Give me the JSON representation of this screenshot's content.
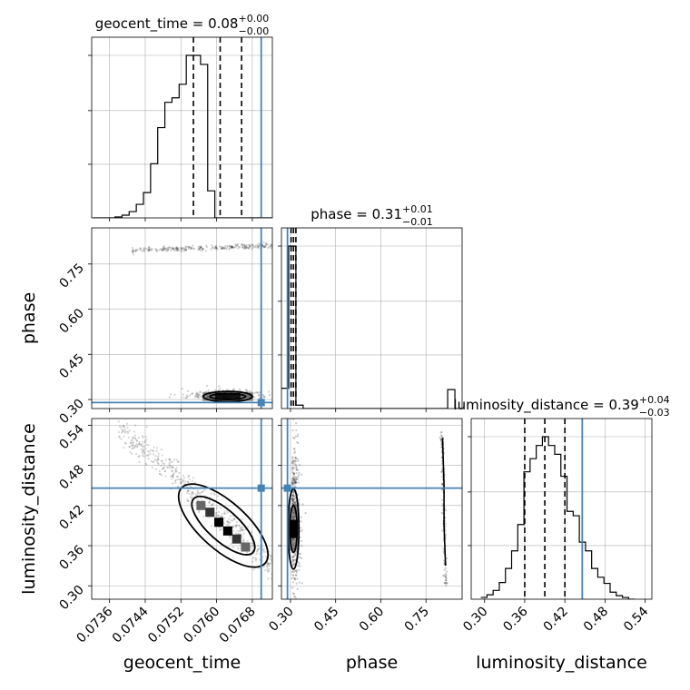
{
  "chart_data": {
    "type": "corner",
    "colors": {
      "truth": "#4682b4",
      "hist": "#000000",
      "grid": "#b0b0b0"
    },
    "parameters": [
      {
        "name": "geocent_time",
        "title_main": "geocent_time = 0.08",
        "title_sup": "+0.00",
        "title_sub": "−0.00",
        "range": [
          0.0732,
          0.07725
        ],
        "ticks": [
          0.0736,
          0.0744,
          0.0752,
          0.076,
          0.0768
        ],
        "tick_labels": [
          "0.0736",
          "0.0744",
          "0.0752",
          "0.0760",
          "0.0768"
        ],
        "truth": 0.077,
        "quantiles": [
          0.07548,
          0.07608,
          0.07656
        ],
        "hist_bin_edges": [
          0.07324,
          0.0734,
          0.07356,
          0.07372,
          0.07388,
          0.07404,
          0.0742,
          0.07436,
          0.07452,
          0.07468,
          0.07484,
          0.075,
          0.07516,
          0.07532,
          0.07548,
          0.07564,
          0.0758,
          0.07596,
          0.07612,
          0.07628,
          0.07644,
          0.0766,
          0.07676,
          0.07692,
          0.07708,
          0.07724
        ],
        "hist_counts": [
          0,
          0,
          0,
          1,
          3,
          7,
          15,
          28,
          60,
          100,
          128,
          133,
          148,
          180,
          180,
          170,
          30,
          0,
          0,
          0,
          0,
          0,
          0,
          0,
          0
        ]
      },
      {
        "name": "phase",
        "title_main": "phase = 0.31",
        "title_sup": "+0.01",
        "title_sub": "−0.01",
        "range": [
          0.27,
          0.87
        ],
        "ticks": [
          0.3,
          0.45,
          0.6,
          0.75
        ],
        "tick_labels": [
          "0.30",
          "0.45",
          "0.60",
          "0.75"
        ],
        "truth": 0.29,
        "quantiles": [
          0.302,
          0.31,
          0.318
        ],
        "hist_bin_edges": [
          0.27,
          0.294,
          0.318,
          0.342,
          0.366,
          0.39,
          0.414,
          0.438,
          0.462,
          0.486,
          0.51,
          0.534,
          0.558,
          0.582,
          0.606,
          0.63,
          0.654,
          0.678,
          0.702,
          0.726,
          0.75,
          0.774,
          0.798,
          0.822,
          0.846,
          0.87
        ],
        "hist_counts": [
          30,
          240,
          5,
          0,
          0,
          0,
          0,
          0,
          0,
          0,
          0,
          0,
          0,
          0,
          0,
          0,
          0,
          0,
          0,
          0,
          0,
          0,
          0,
          28,
          0
        ]
      },
      {
        "name": "luminosity_distance",
        "title_main": "luminosity_distance = 0.39",
        "title_sup": "+0.04",
        "title_sub": "−0.03",
        "range": [
          0.28,
          0.55
        ],
        "ticks": [
          0.3,
          0.36,
          0.42,
          0.48,
          0.54
        ],
        "tick_labels": [
          "0.30",
          "0.36",
          "0.42",
          "0.48",
          "0.54"
        ],
        "truth": 0.446,
        "quantiles": [
          0.36,
          0.39,
          0.42
        ],
        "hist_bin_edges": [
          0.2944,
          0.3036,
          0.3128,
          0.322,
          0.3312,
          0.3404,
          0.3496,
          0.3588,
          0.368,
          0.3772,
          0.3864,
          0.3956,
          0.4048,
          0.414,
          0.4232,
          0.4324,
          0.4416,
          0.4508,
          0.46,
          0.4692,
          0.4784,
          0.4876,
          0.4968,
          0.506,
          0.5152,
          0.5244
        ],
        "hist_counts": [
          2,
          5,
          10,
          19,
          35,
          55,
          85,
          145,
          160,
          175,
          185,
          175,
          165,
          140,
          100,
          95,
          65,
          55,
          35,
          25,
          18,
          8,
          4,
          2,
          0
        ]
      }
    ],
    "pair_panels": [
      {
        "x": "geocent_time",
        "y": "phase",
        "truth": [
          0.077,
          0.29
        ],
        "band_ridge": [
          [
            0.0741,
            0.795
          ],
          [
            0.0748,
            0.8
          ],
          [
            0.0756,
            0.804
          ],
          [
            0.0764,
            0.808
          ],
          [
            0.0772,
            0.812
          ]
        ],
        "cluster_center": [
          0.07625,
          0.31
        ],
        "contour_levels": [
          {
            "center": [
              0.07625,
              0.31
            ],
            "half_widths": [
              0.0004,
              0.01
            ]
          },
          {
            "center": [
              0.07625,
              0.31
            ],
            "half_widths": [
              0.00055,
              0.017
            ]
          }
        ]
      },
      {
        "x": "geocent_time",
        "y": "luminosity_distance",
        "truth": [
          0.077,
          0.446
        ],
        "trend": [
          [
            0.0738,
            0.53
          ],
          [
            0.0746,
            0.505
          ],
          [
            0.0754,
            0.465
          ],
          [
            0.076,
            0.41
          ],
          [
            0.0766,
            0.37
          ],
          [
            0.0772,
            0.335
          ]
        ],
        "contour_levels": [
          {
            "center": [
              0.07615,
              0.39
            ],
            "half_widths": [
              0.0006,
              0.035
            ],
            "angle_deg": 42
          },
          {
            "center": [
              0.07615,
              0.39
            ],
            "half_widths": [
              0.0009,
              0.053
            ],
            "angle_deg": 42
          }
        ]
      },
      {
        "x": "phase",
        "y": "luminosity_distance",
        "truth": [
          0.29,
          0.446
        ],
        "lobes": [
          {
            "center": [
              0.31,
              0.385
            ],
            "half_widths": [
              0.012,
              0.035
            ]
          },
          {
            "center": [
              0.31,
              0.385
            ],
            "half_widths": [
              0.018,
              0.06
            ]
          }
        ],
        "secondary_ridge": [
          [
            0.805,
            0.52
          ],
          [
            0.81,
            0.45
          ],
          [
            0.81,
            0.39
          ],
          [
            0.815,
            0.33
          ]
        ]
      }
    ]
  }
}
